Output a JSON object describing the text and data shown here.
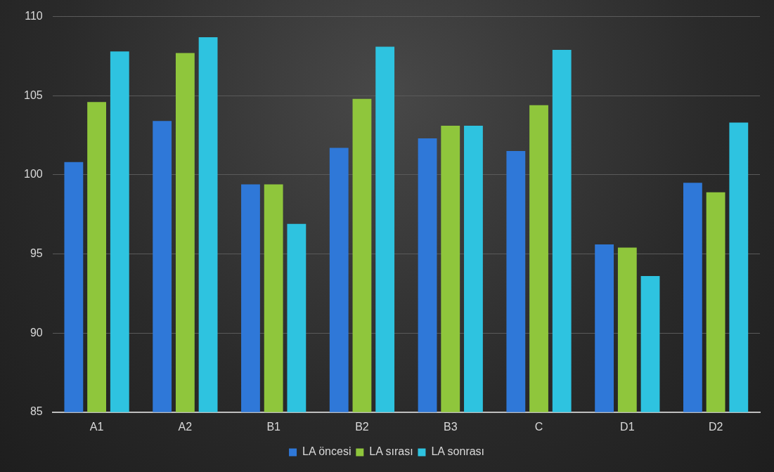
{
  "chart_data": {
    "type": "bar",
    "categories": [
      "A1",
      "A2",
      "B1",
      "B2",
      "B3",
      "C",
      "D1",
      "D2"
    ],
    "series": [
      {
        "name": "LA öncesi",
        "color": "#2f78d8",
        "values": [
          100.8,
          103.4,
          99.4,
          101.7,
          102.3,
          101.5,
          95.6,
          99.5
        ]
      },
      {
        "name": "LA sırası",
        "color": "#8fc63c",
        "values": [
          104.6,
          107.7,
          99.4,
          104.8,
          103.1,
          104.4,
          95.4,
          98.9
        ]
      },
      {
        "name": "LA sonrası",
        "color": "#2ec3e0",
        "values": [
          107.8,
          108.7,
          96.9,
          108.1,
          103.1,
          107.9,
          93.6,
          103.3
        ]
      }
    ],
    "ylim": [
      85,
      110
    ],
    "yticks": [
      85,
      90,
      95,
      100,
      105,
      110
    ],
    "grid": "y",
    "legend": "bottom"
  }
}
